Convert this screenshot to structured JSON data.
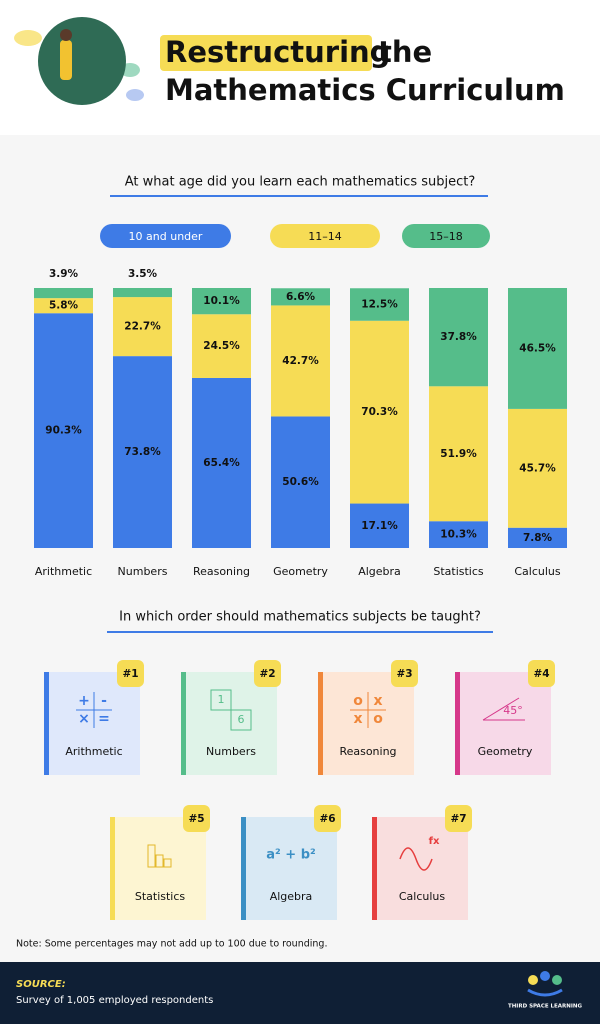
{
  "header": {
    "title_highlight": "Restructuring",
    "title_end": "the",
    "title_line2": "Mathematics Curriculum"
  },
  "chart_data": {
    "type": "bar",
    "stacked": true,
    "title": "At what age did you learn each mathematics subject?",
    "categories": [
      "Arithmetic",
      "Numbers",
      "Reasoning",
      "Geometry",
      "Algebra",
      "Statistics",
      "Calculus"
    ],
    "series": [
      {
        "name": "10 and under",
        "color": "#3e7be6",
        "values": [
          90.3,
          73.8,
          65.4,
          50.6,
          17.1,
          10.3,
          7.8
        ],
        "value_labels": [
          "90.3%",
          "73.8%",
          "65.4%",
          "50.6%",
          "17.1%",
          "10.3%",
          "7.8%"
        ]
      },
      {
        "name": "11–14",
        "color": "#f6dc55",
        "values": [
          5.8,
          22.7,
          24.5,
          42.7,
          70.3,
          51.9,
          45.7
        ],
        "value_labels": [
          "5.8%",
          "22.7%",
          "24.5%",
          "42.7%",
          "70.3%",
          "51.9%",
          "45.7%"
        ]
      },
      {
        "name": "15–18",
        "color": "#55bd8a",
        "values": [
          3.9,
          3.5,
          10.1,
          6.6,
          12.5,
          37.8,
          46.5
        ],
        "value_labels": [
          "3.9%",
          "3.5%",
          "10.1%",
          "6.6%",
          "12.5%",
          "37.8%",
          "46.5%"
        ]
      }
    ],
    "ylim": [
      0,
      100
    ]
  },
  "ranking": {
    "title": "In which order should mathematics subjects be taught?",
    "items": [
      {
        "rank": "#1",
        "label": "Arithmetic",
        "icon": [
          "+",
          "-",
          "×",
          "="
        ]
      },
      {
        "rank": "#2",
        "label": "Numbers",
        "icon": [
          "1",
          "6"
        ]
      },
      {
        "rank": "#3",
        "label": "Reasoning",
        "icon": [
          "o",
          "x",
          "x",
          "o"
        ]
      },
      {
        "rank": "#4",
        "label": "Geometry",
        "icon": [
          "45°"
        ]
      },
      {
        "rank": "#5",
        "label": "Statistics",
        "icon": []
      },
      {
        "rank": "#6",
        "label": "Algebra",
        "icon": [
          "a² + b²"
        ]
      },
      {
        "rank": "#7",
        "label": "Calculus",
        "icon": [
          "fx"
        ]
      }
    ]
  },
  "note": "Note: Some percentages may not add up to 100 due to rounding.",
  "source": {
    "label": "SOURCE:",
    "text": "Survey of 1,005 employed respondents"
  },
  "logo": "THIRD SPACE LEARNING"
}
